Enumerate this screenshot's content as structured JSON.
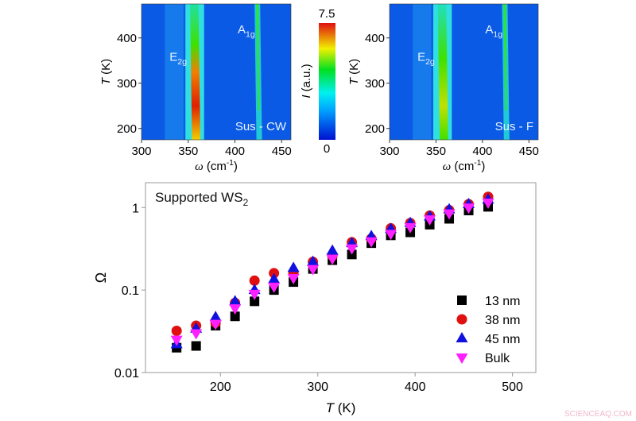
{
  "chart_data": [
    {
      "type": "heatmap",
      "panel_label": "Sus - CW",
      "xlabel": "ω (cm-1)",
      "ylabel": "T (K)",
      "xticks": [
        300,
        350,
        400,
        450
      ],
      "yticks": [
        200,
        300,
        400
      ],
      "xlim": [
        300,
        460
      ],
      "ylim": [
        175,
        475
      ],
      "annotations": [
        "E2g",
        "A1g"
      ],
      "peaks": [
        {
          "mode": "E2g",
          "position": 357,
          "max_intensity": 7.5
        },
        {
          "mode": "A1g",
          "position": 424,
          "max_intensity": 4
        }
      ]
    },
    {
      "type": "colorbar",
      "label": "I (a.u.)",
      "range": [
        0,
        7.5
      ],
      "ticks": [
        "7.5",
        "0"
      ]
    },
    {
      "type": "heatmap",
      "panel_label": "Sus - F",
      "xlabel": "ω (cm-1)",
      "ylabel": "T (K)",
      "xticks": [
        300,
        350,
        400,
        450
      ],
      "yticks": [
        200,
        300,
        400
      ],
      "xlim": [
        300,
        460
      ],
      "ylim": [
        175,
        475
      ],
      "annotations": [
        "E2g",
        "A1g"
      ],
      "peaks": [
        {
          "mode": "E2g",
          "position": 357,
          "max_intensity": 5
        },
        {
          "mode": "A1g",
          "position": 424,
          "max_intensity": 3.5
        }
      ]
    },
    {
      "type": "scatter",
      "title": "Supported WS2",
      "xlabel": "T (K)",
      "ylabel": "Ω",
      "xlim": [
        123,
        524
      ],
      "ylim": [
        0.01,
        2
      ],
      "yscale": "log",
      "xticks": [
        200,
        300,
        400,
        500
      ],
      "yticks": [
        "0.01",
        "0.1",
        "1"
      ],
      "legend": "bottom-right",
      "grid": false,
      "x": [
        155,
        175,
        195,
        215,
        235,
        255,
        275,
        295,
        315,
        335,
        355,
        375,
        395,
        415,
        435,
        455,
        475
      ],
      "series": [
        {
          "name": "13 nm",
          "marker": "square",
          "color": "#000000",
          "values": [
            0.02,
            0.021,
            0.037,
            0.048,
            0.073,
            0.1,
            0.125,
            0.18,
            0.23,
            0.27,
            0.37,
            0.46,
            0.5,
            0.62,
            0.73,
            0.92,
            1.02
          ]
        },
        {
          "name": "38 nm",
          "marker": "circle",
          "color": "#e01010",
          "values": [
            0.032,
            0.037,
            0.04,
            0.07,
            0.13,
            0.16,
            0.16,
            0.22,
            0.26,
            0.38,
            0.42,
            0.56,
            0.65,
            0.8,
            0.93,
            1.1,
            1.35
          ]
        },
        {
          "name": "45 nm",
          "marker": "triangle-up",
          "color": "#1010e0",
          "values": [
            0.022,
            0.034,
            0.047,
            0.073,
            0.1,
            0.135,
            0.185,
            0.22,
            0.3,
            0.37,
            0.45,
            0.55,
            0.65,
            0.78,
            0.95,
            1.1,
            1.25
          ]
        },
        {
          "name": "Bulk",
          "marker": "triangle-down",
          "color": "#ff20ff",
          "values": [
            0.025,
            0.03,
            0.039,
            0.06,
            0.09,
            0.11,
            0.14,
            0.18,
            0.24,
            0.32,
            0.39,
            0.48,
            0.58,
            0.72,
            0.85,
            1.0,
            1.15
          ]
        }
      ]
    }
  ],
  "watermark": "SCIENCEAQ.COM"
}
